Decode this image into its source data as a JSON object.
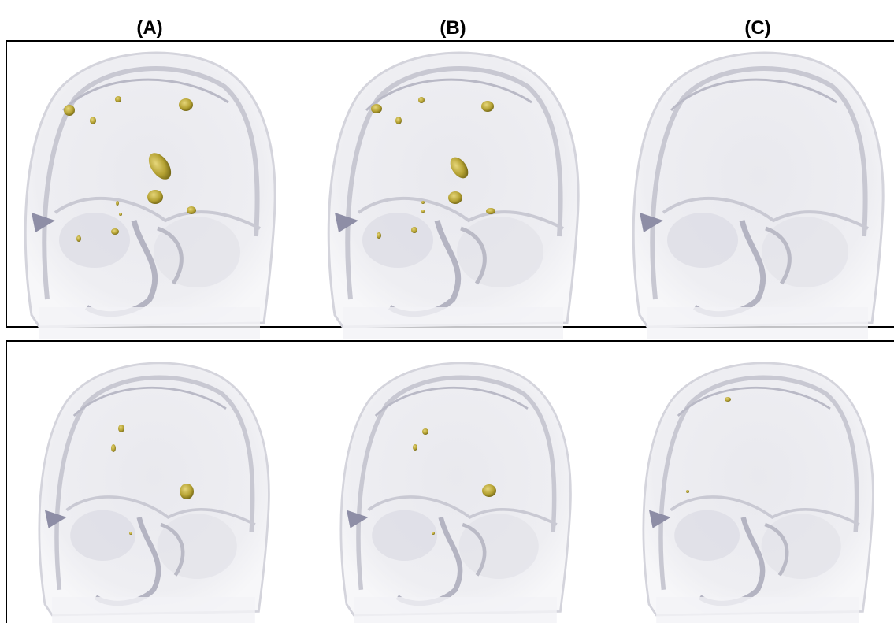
{
  "columns": [
    "(A)",
    "(B)",
    "(C)"
  ]
}
